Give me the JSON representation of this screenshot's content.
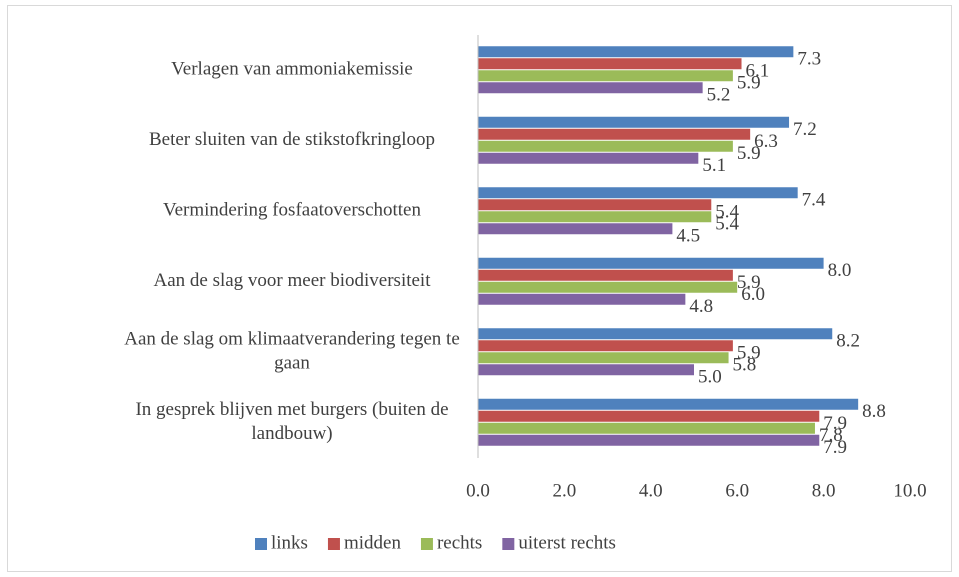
{
  "chart_data": {
    "type": "barh",
    "categories": [
      "Verlagen van ammoniakemissie",
      "Beter sluiten van de stikstofkringloop",
      "Vermindering fosfaatoverschotten",
      "Aan de slag voor meer biodiversiteit",
      "Aan de slag om klimaatverandering tegen te gaan",
      "In gesprek blijven met burgers (buiten de landbouw)"
    ],
    "series": [
      {
        "name": "links",
        "color": "#4f81bd",
        "values": [
          7.3,
          7.2,
          7.4,
          8.0,
          8.2,
          8.8
        ],
        "value_labels": [
          "7.3",
          "7.2",
          "7.4",
          "8.0",
          "8.2",
          "8.8"
        ]
      },
      {
        "name": "midden",
        "color": "#c0504d",
        "values": [
          6.1,
          6.3,
          5.4,
          5.9,
          5.9,
          7.9
        ],
        "value_labels": [
          "6.1",
          "6.3",
          "5.4",
          "5.9",
          "5.9",
          "7.9"
        ]
      },
      {
        "name": "rechts",
        "color": "#9bbb59",
        "values": [
          5.9,
          5.9,
          5.4,
          6.0,
          5.8,
          7.8
        ],
        "value_labels": [
          "5.9",
          "5.9",
          "5.4",
          "6.0",
          "5.8",
          "7.8"
        ]
      },
      {
        "name": "uiterst rechts",
        "color": "#8064a2",
        "values": [
          5.2,
          5.1,
          4.5,
          4.8,
          5.0,
          7.9
        ],
        "value_labels": [
          "5.2",
          "5.1",
          "4.5",
          "4.8",
          "5.0",
          "7.9"
        ]
      }
    ],
    "xlim": [
      0,
      10
    ],
    "xticks": [
      {
        "value": 0,
        "label": "0.0"
      },
      {
        "value": 2,
        "label": "2.0"
      },
      {
        "value": 4,
        "label": "4.0"
      },
      {
        "value": 6,
        "label": "6.0"
      },
      {
        "value": 8,
        "label": "8.0"
      },
      {
        "value": 10,
        "label": "10.0"
      }
    ],
    "grid": false,
    "legend": "bottom"
  }
}
